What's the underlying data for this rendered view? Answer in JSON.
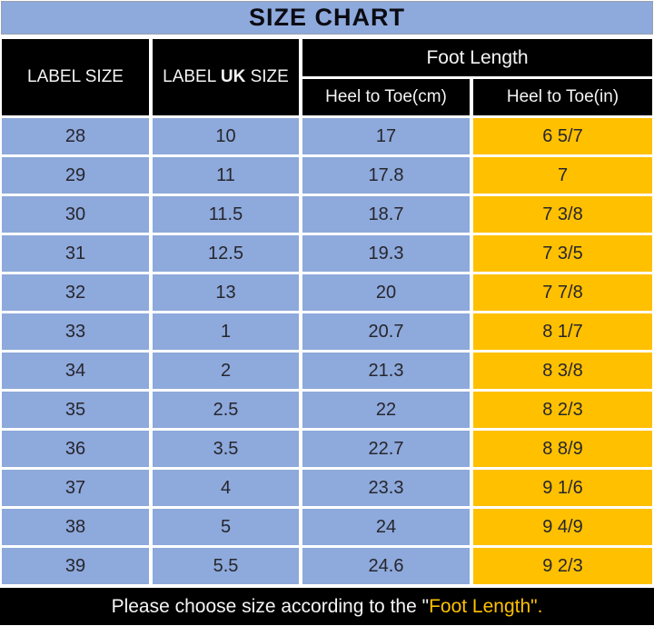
{
  "title": "SIZE CHART",
  "colors": {
    "blue": "#8EA9DB",
    "gold": "#FFC000",
    "header_bg": "#000000",
    "cell_text": "#26262E"
  },
  "header": {
    "col1": "LABEL SIZE",
    "col2_prefix": "LABEL ",
    "col2_bold": "UK",
    "col2_suffix": " SIZE",
    "foot_length": "Foot Length",
    "sub_cm": "Heel to Toe(cm)",
    "sub_in": "Heel to Toe(in)"
  },
  "table": {
    "columns": [
      "LABEL SIZE",
      "LABEL UK SIZE",
      "Heel to Toe(cm)",
      "Heel to Toe(in)"
    ],
    "rows": [
      [
        "28",
        "10",
        "17",
        "6 5/7"
      ],
      [
        "29",
        "11",
        "17.8",
        "7"
      ],
      [
        "30",
        "11.5",
        "18.7",
        "7 3/8"
      ],
      [
        "31",
        "12.5",
        "19.3",
        "7 3/5"
      ],
      [
        "32",
        "13",
        "20",
        "7 7/8"
      ],
      [
        "33",
        "1",
        "20.7",
        "8 1/7"
      ],
      [
        "34",
        "2",
        "21.3",
        "8 3/8"
      ],
      [
        "35",
        "2.5",
        "22",
        "8 2/3"
      ],
      [
        "36",
        "3.5",
        "22.7",
        "8 8/9"
      ],
      [
        "37",
        "4",
        "23.3",
        "9 1/6"
      ],
      [
        "38",
        "5",
        "24",
        "9 4/9"
      ],
      [
        "39",
        "5.5",
        "24.6",
        "9 2/3"
      ]
    ]
  },
  "footer": {
    "text_white": "Please choose size according to the \"",
    "text_yellow": "Foot Length\"."
  }
}
